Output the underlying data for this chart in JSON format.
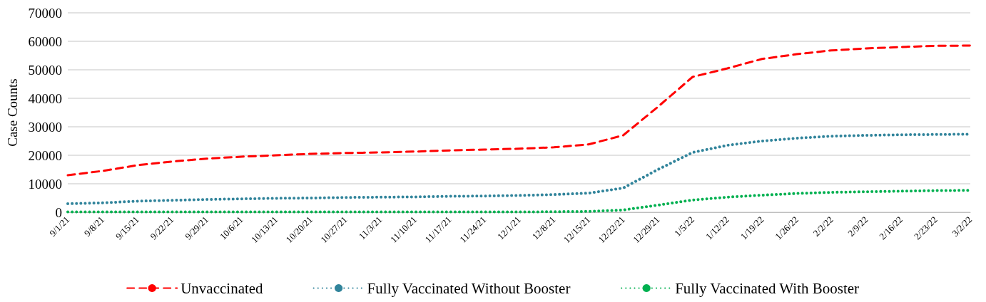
{
  "chart_data": {
    "type": "line",
    "ylabel": "Case Counts",
    "categories": [
      "9/1/21",
      "9/8/21",
      "9/15/21",
      "9/22/21",
      "9/29/21",
      "10/6/21",
      "10/13/21",
      "10/20/21",
      "10/27/21",
      "11/3/21",
      "11/10/21",
      "11/17/21",
      "11/24/21",
      "12/1/21",
      "12/8/21",
      "12/15/21",
      "12/22/21",
      "12/29/21",
      "1/5/22",
      "1/12/22",
      "1/19/22",
      "1/26/22",
      "2/2/22",
      "2/9/22",
      "2/16/22",
      "2/23/22",
      "3/2/22"
    ],
    "series": [
      {
        "name": "Unvaccinated",
        "color": "#ff0000",
        "line_style": "dashed",
        "values": [
          13000,
          14500,
          16500,
          17800,
          18800,
          19500,
          20000,
          20500,
          20800,
          21000,
          21300,
          21700,
          22000,
          22300,
          22800,
          23800,
          27000,
          37000,
          47500,
          50500,
          53800,
          55500,
          56800,
          57500,
          58000,
          58400,
          58500
        ]
      },
      {
        "name": "Fully Vaccinated Without Booster",
        "color": "#31849b",
        "line_style": "dotted",
        "values": [
          3000,
          3300,
          3900,
          4200,
          4500,
          4700,
          4900,
          5000,
          5200,
          5300,
          5400,
          5600,
          5700,
          5900,
          6200,
          6700,
          8500,
          15000,
          21000,
          23500,
          25000,
          26000,
          26700,
          27000,
          27200,
          27300,
          27400
        ]
      },
      {
        "name": "Fully Vaccinated With Booster",
        "color": "#00b050",
        "line_style": "dotted",
        "values": [
          100,
          100,
          100,
          100,
          100,
          100,
          100,
          100,
          100,
          100,
          100,
          100,
          100,
          100,
          200,
          300,
          800,
          2500,
          4300,
          5300,
          6000,
          6600,
          7000,
          7200,
          7400,
          7600,
          7700
        ]
      }
    ],
    "ylim": [
      0,
      70000
    ],
    "yticks": [
      0,
      10000,
      20000,
      30000,
      40000,
      50000,
      60000,
      70000
    ],
    "grid": "y",
    "legend": "bottom",
    "marker": "none"
  }
}
